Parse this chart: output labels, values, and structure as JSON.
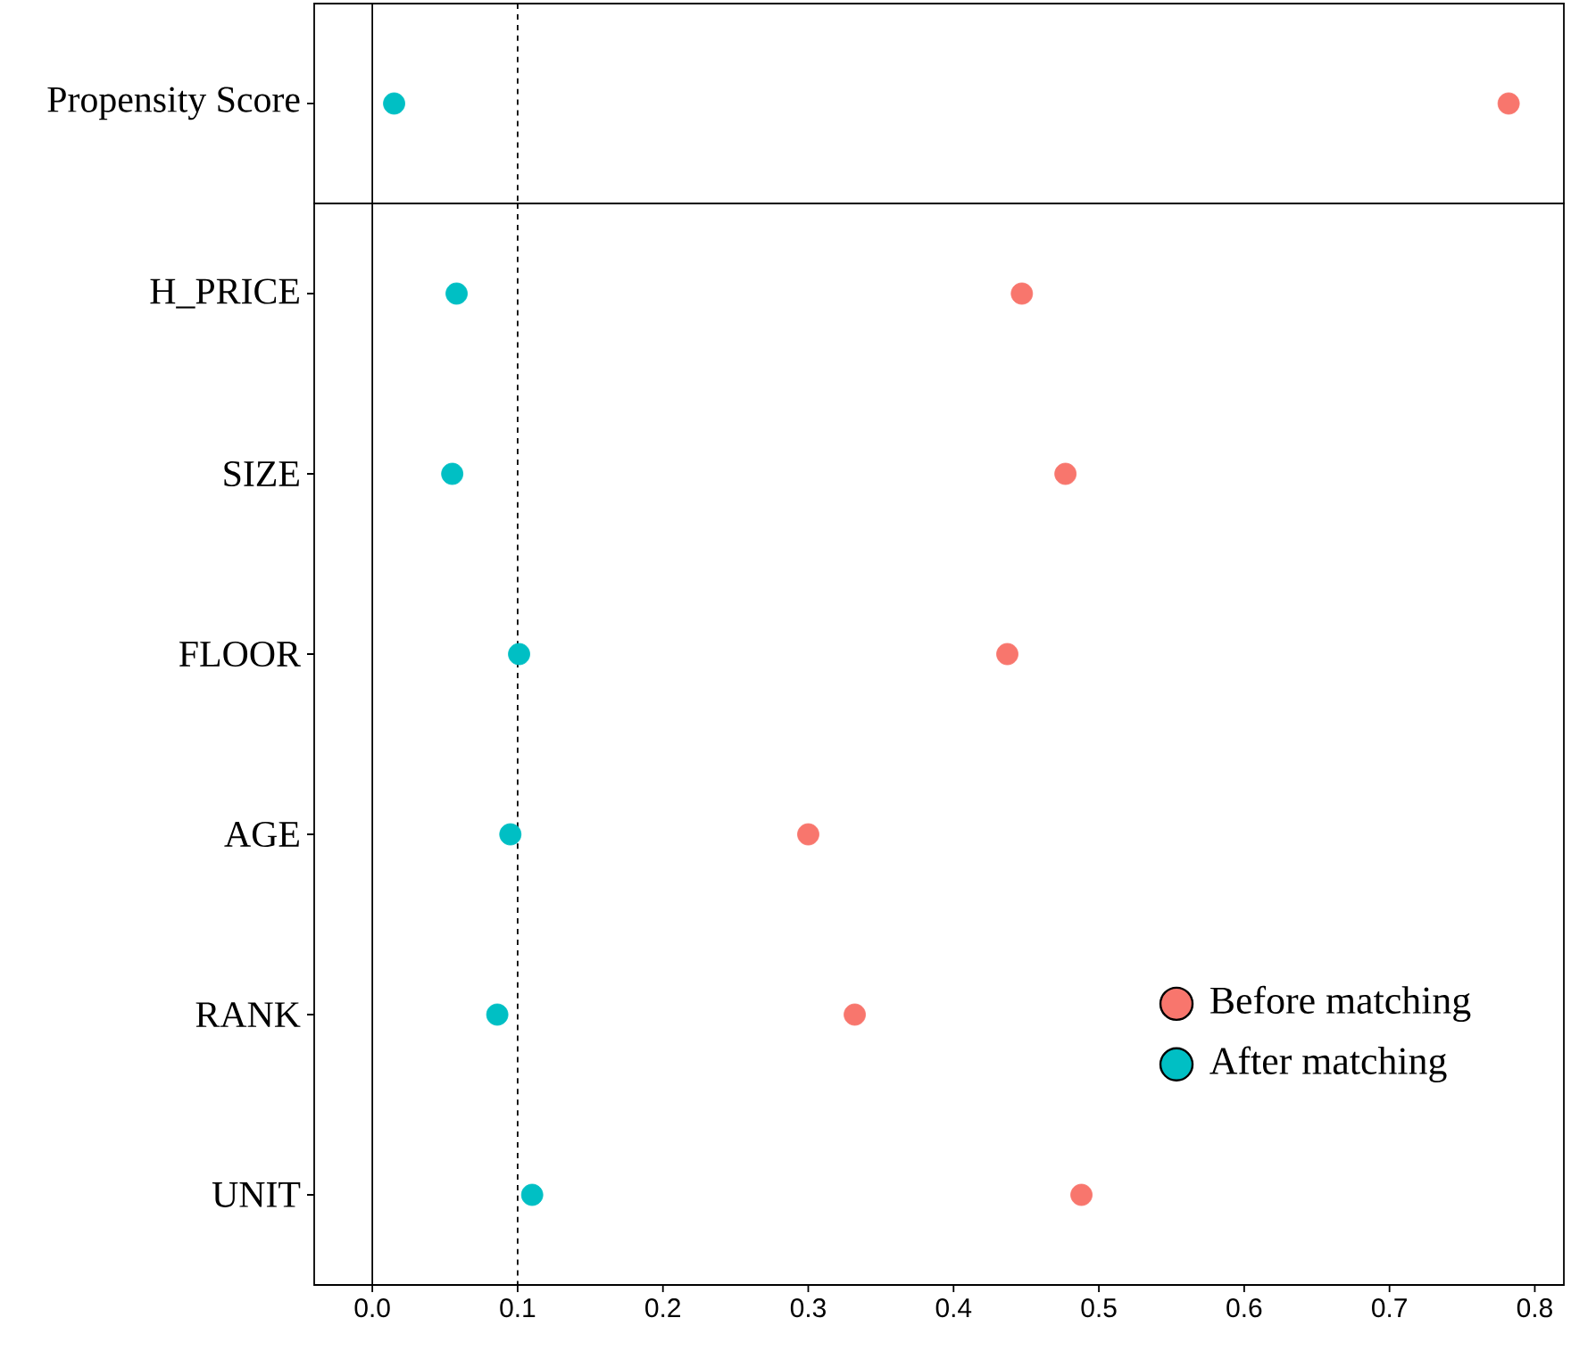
{
  "chart_data": [
    {
      "type": "scatter",
      "orientation": "horizontal",
      "categories": [
        "Propensity Score"
      ],
      "series": [
        {
          "color": "#f8766d",
          "values": [
            0.782
          ]
        },
        {
          "color": "#00bfc4",
          "values": [
            0.015
          ]
        }
      ],
      "xlim": [
        -0.04,
        0.82
      ],
      "tick_labels": "y",
      "marker": "circle",
      "ref_lines": [
        {
          "axis": "x",
          "value": 0,
          "line_style": "solid"
        },
        {
          "axis": "x",
          "value": 0.1,
          "line_style": "dashed"
        }
      ]
    },
    {
      "type": "scatter",
      "orientation": "horizontal",
      "categories": [
        "H_PRICE",
        "SIZE",
        "FLOOR",
        "AGE",
        "RANK",
        "UNIT"
      ],
      "series": [
        {
          "name": "Before matching",
          "color": "#f8766d",
          "values": [
            0.447,
            0.477,
            0.437,
            0.3,
            0.332,
            0.488
          ]
        },
        {
          "name": "After matching",
          "color": "#00bfc4",
          "values": [
            0.058,
            0.055,
            0.101,
            0.095,
            0.086,
            0.11
          ]
        }
      ],
      "xlim": [
        -0.04,
        0.82
      ],
      "xticks": [
        {
          "value": 0,
          "label": "0.0"
        },
        0.1,
        0.2,
        0.3,
        0.4,
        0.5,
        0.6,
        0.7,
        0.8
      ],
      "marker": "circle",
      "legend": "bottom right",
      "ref_lines": [
        {
          "axis": "x",
          "value": 0,
          "line_style": "solid"
        },
        {
          "axis": "x",
          "value": 0.1,
          "line_style": "dashed"
        }
      ]
    }
  ]
}
